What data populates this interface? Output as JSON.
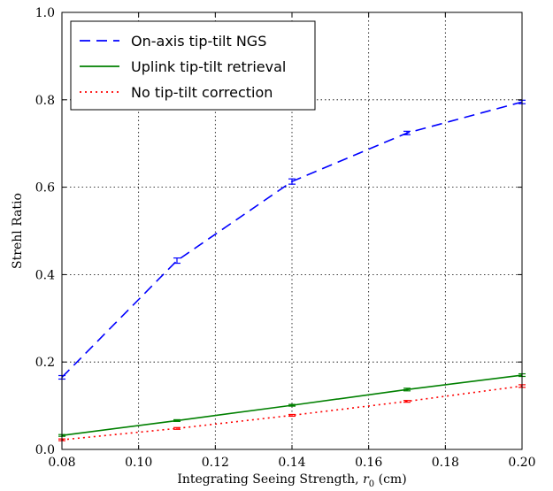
{
  "chart_data": {
    "type": "line",
    "title": "",
    "xlabel": "Integrating Seeing Strength, ",
    "xlabel_var": "r",
    "xlabel_sub": "0",
    "xlabel_unit": " (cm)",
    "ylabel": "Strehl Ratio",
    "xlim": [
      0.08,
      0.2
    ],
    "ylim": [
      0.0,
      1.0
    ],
    "xticks": [
      0.08,
      0.1,
      0.12,
      0.14,
      0.16,
      0.18,
      0.2
    ],
    "xtick_labels": [
      "0.08",
      "0.10",
      "0.12",
      "0.14",
      "0.16",
      "0.18",
      "0.20"
    ],
    "yticks": [
      0.0,
      0.2,
      0.4,
      0.6,
      0.8,
      1.0
    ],
    "ytick_labels": [
      "0.0",
      "0.2",
      "0.4",
      "0.6",
      "0.8",
      "1.0"
    ],
    "grid": true,
    "legend_position": "top-left",
    "series": [
      {
        "name": "On-axis tip-tilt NGS",
        "color": "#0000ff",
        "style": "dashed",
        "x": [
          0.08,
          0.11,
          0.14,
          0.17,
          0.2
        ],
        "y": [
          0.165,
          0.432,
          0.613,
          0.724,
          0.795
        ],
        "err": [
          0.004,
          0.006,
          0.006,
          0.004,
          0.004
        ]
      },
      {
        "name": "Uplink tip-tilt retrieval",
        "color": "#008000",
        "style": "solid",
        "x": [
          0.08,
          0.11,
          0.14,
          0.17,
          0.2
        ],
        "y": [
          0.032,
          0.066,
          0.101,
          0.137,
          0.17
        ],
        "err": [
          0.002,
          0.002,
          0.002,
          0.003,
          0.003
        ]
      },
      {
        "name": "No tip-tilt correction",
        "color": "#ff0000",
        "style": "dotted",
        "x": [
          0.08,
          0.11,
          0.14,
          0.17,
          0.2
        ],
        "y": [
          0.022,
          0.048,
          0.078,
          0.11,
          0.145
        ],
        "err": [
          0.002,
          0.002,
          0.002,
          0.002,
          0.003
        ]
      }
    ]
  }
}
